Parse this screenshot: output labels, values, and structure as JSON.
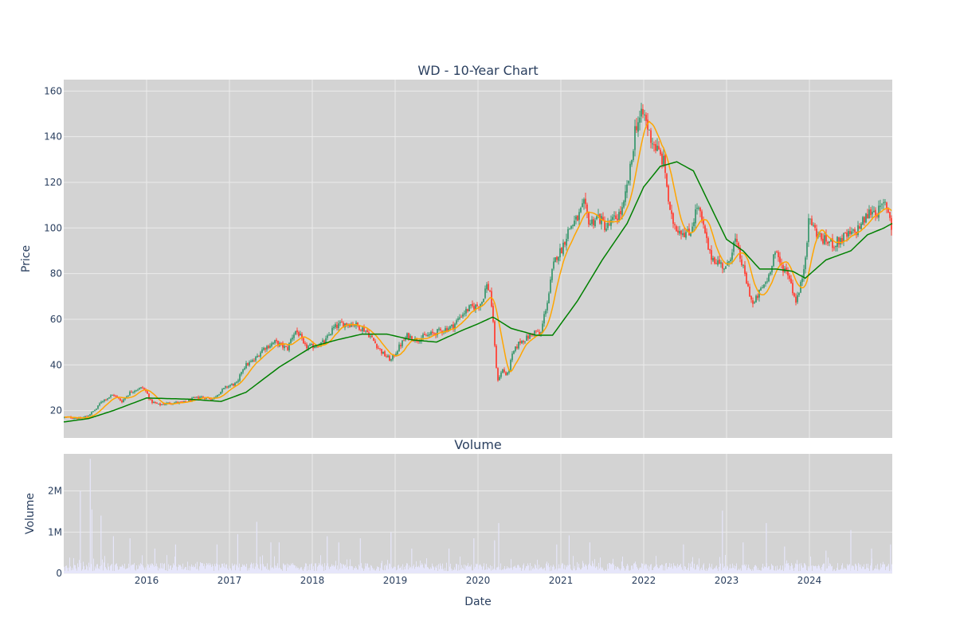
{
  "chart_data": [
    {
      "type": "candlestick",
      "title": "WD - 10-Year Chart",
      "ylabel": "Price",
      "ylim": [
        8,
        165
      ],
      "yticks": [
        20,
        40,
        60,
        80,
        100,
        120,
        140,
        160
      ],
      "xlim": [
        2015.0,
        2025.0
      ],
      "grid": true,
      "background": "#d3d3d3",
      "colors": {
        "up": "#3d9970",
        "down": "#ff4136",
        "ma_short": "#ffa500",
        "ma_long": "#008000"
      },
      "price_anchors": [
        [
          2015.0,
          17
        ],
        [
          2015.1,
          17
        ],
        [
          2015.2,
          16.5
        ],
        [
          2015.3,
          18
        ],
        [
          2015.4,
          21
        ],
        [
          2015.45,
          24
        ],
        [
          2015.55,
          26
        ],
        [
          2015.6,
          27
        ],
        [
          2015.7,
          24
        ],
        [
          2015.8,
          28
        ],
        [
          2015.85,
          29
        ],
        [
          2015.95,
          30
        ],
        [
          2016.0,
          28
        ],
        [
          2016.05,
          24
        ],
        [
          2016.15,
          22.5
        ],
        [
          2016.3,
          23.5
        ],
        [
          2016.45,
          23.5
        ],
        [
          2016.55,
          25
        ],
        [
          2016.65,
          26
        ],
        [
          2016.8,
          25
        ],
        [
          2016.85,
          27
        ],
        [
          2016.95,
          30
        ],
        [
          2017.0,
          31
        ],
        [
          2017.1,
          32
        ],
        [
          2017.15,
          38
        ],
        [
          2017.2,
          40
        ],
        [
          2017.3,
          42
        ],
        [
          2017.4,
          47
        ],
        [
          2017.55,
          50
        ],
        [
          2017.7,
          47
        ],
        [
          2017.75,
          52
        ],
        [
          2017.8,
          55
        ],
        [
          2017.85,
          53
        ],
        [
          2017.9,
          48
        ],
        [
          2018.0,
          48
        ],
        [
          2018.15,
          50
        ],
        [
          2018.25,
          56
        ],
        [
          2018.35,
          58
        ],
        [
          2018.5,
          58
        ],
        [
          2018.65,
          55
        ],
        [
          2018.75,
          50
        ],
        [
          2018.85,
          45
        ],
        [
          2018.95,
          42
        ],
        [
          2019.05,
          48
        ],
        [
          2019.15,
          53
        ],
        [
          2019.25,
          51
        ],
        [
          2019.4,
          53
        ],
        [
          2019.55,
          55
        ],
        [
          2019.7,
          57
        ],
        [
          2019.8,
          62
        ],
        [
          2019.9,
          65
        ],
        [
          2020.0,
          66
        ],
        [
          2020.05,
          68
        ],
        [
          2020.1,
          75
        ],
        [
          2020.15,
          72
        ],
        [
          2020.2,
          50
        ],
        [
          2020.23,
          33
        ],
        [
          2020.3,
          38
        ],
        [
          2020.35,
          35
        ],
        [
          2020.42,
          45
        ],
        [
          2020.5,
          50
        ],
        [
          2020.6,
          52
        ],
        [
          2020.7,
          55
        ],
        [
          2020.75,
          52
        ],
        [
          2020.8,
          62
        ],
        [
          2020.85,
          70
        ],
        [
          2020.9,
          82
        ],
        [
          2020.95,
          88
        ],
        [
          2021.0,
          90
        ],
        [
          2021.1,
          100
        ],
        [
          2021.2,
          104
        ],
        [
          2021.28,
          110
        ],
        [
          2021.35,
          102
        ],
        [
          2021.45,
          105
        ],
        [
          2021.55,
          100
        ],
        [
          2021.65,
          104
        ],
        [
          2021.75,
          108
        ],
        [
          2021.8,
          118
        ],
        [
          2021.85,
          128
        ],
        [
          2021.9,
          145
        ],
        [
          2022.0,
          150
        ],
        [
          2022.08,
          140
        ],
        [
          2022.15,
          135
        ],
        [
          2022.25,
          128
        ],
        [
          2022.32,
          105
        ],
        [
          2022.4,
          100
        ],
        [
          2022.55,
          97
        ],
        [
          2022.65,
          110
        ],
        [
          2022.72,
          100
        ],
        [
          2022.8,
          88
        ],
        [
          2022.9,
          85
        ],
        [
          2023.0,
          82
        ],
        [
          2023.1,
          95
        ],
        [
          2023.18,
          85
        ],
        [
          2023.25,
          75
        ],
        [
          2023.32,
          66
        ],
        [
          2023.4,
          72
        ],
        [
          2023.5,
          78
        ],
        [
          2023.58,
          90
        ],
        [
          2023.65,
          84
        ],
        [
          2023.75,
          80
        ],
        [
          2023.83,
          68
        ],
        [
          2023.88,
          72
        ],
        [
          2023.93,
          82
        ],
        [
          2024.0,
          105
        ],
        [
          2024.05,
          100
        ],
        [
          2024.15,
          95
        ],
        [
          2024.3,
          93
        ],
        [
          2024.42,
          96
        ],
        [
          2024.55,
          98
        ],
        [
          2024.65,
          103
        ],
        [
          2024.75,
          108
        ],
        [
          2024.83,
          107
        ],
        [
          2024.92,
          111
        ],
        [
          2024.98,
          104
        ],
        [
          2025.0,
          97
        ]
      ],
      "ma_long_anchors": [
        [
          2015.0,
          15
        ],
        [
          2015.3,
          16.5
        ],
        [
          2015.6,
          20
        ],
        [
          2016.0,
          25.5
        ],
        [
          2016.5,
          25
        ],
        [
          2016.9,
          24
        ],
        [
          2017.2,
          28
        ],
        [
          2017.6,
          39
        ],
        [
          2018.0,
          48
        ],
        [
          2018.3,
          51
        ],
        [
          2018.6,
          53.5
        ],
        [
          2018.9,
          53.5
        ],
        [
          2019.2,
          51
        ],
        [
          2019.5,
          50
        ],
        [
          2019.8,
          55
        ],
        [
          2020.0,
          58
        ],
        [
          2020.18,
          61
        ],
        [
          2020.4,
          56
        ],
        [
          2020.7,
          53
        ],
        [
          2020.9,
          53
        ],
        [
          2021.2,
          68
        ],
        [
          2021.5,
          86
        ],
        [
          2021.8,
          102
        ],
        [
          2022.0,
          118
        ],
        [
          2022.2,
          127
        ],
        [
          2022.4,
          129
        ],
        [
          2022.6,
          125
        ],
        [
          2022.8,
          110
        ],
        [
          2023.0,
          95
        ],
        [
          2023.2,
          90
        ],
        [
          2023.4,
          82
        ],
        [
          2023.6,
          82
        ],
        [
          2023.8,
          81
        ],
        [
          2023.95,
          78
        ],
        [
          2024.2,
          86
        ],
        [
          2024.5,
          90
        ],
        [
          2024.7,
          97
        ],
        [
          2024.9,
          100
        ],
        [
          2025.0,
          102
        ]
      ]
    },
    {
      "type": "bar",
      "title": "Volume",
      "xlabel": "Date",
      "ylabel": "Volume",
      "ylim": [
        0,
        2900000
      ],
      "yticks": [
        {
          "value": 0,
          "label": "0"
        },
        {
          "value": 1000000,
          "label": "1M"
        },
        {
          "value": 2000000,
          "label": "2M"
        }
      ],
      "xticks": [
        {
          "value": 2016,
          "label": "2016"
        },
        {
          "value": 2017,
          "label": "2017"
        },
        {
          "value": 2018,
          "label": "2018"
        },
        {
          "value": 2019,
          "label": "2019"
        },
        {
          "value": 2020,
          "label": "2020"
        },
        {
          "value": 2021,
          "label": "2021"
        },
        {
          "value": 2022,
          "label": "2022"
        },
        {
          "value": 2023,
          "label": "2023"
        },
        {
          "value": 2024,
          "label": "2024"
        }
      ],
      "xlim": [
        2015.0,
        2025.0
      ],
      "grid": true,
      "background": "#d3d3d3",
      "bar_color": "#e6e6fa",
      "baseline_level": 180000,
      "spikes": [
        [
          2015.2,
          2000000
        ],
        [
          2015.32,
          2780000
        ],
        [
          2015.34,
          1550000
        ],
        [
          2015.45,
          1400000
        ],
        [
          2015.6,
          900000
        ],
        [
          2015.8,
          850000
        ],
        [
          2016.1,
          600000
        ],
        [
          2016.35,
          700000
        ],
        [
          2016.85,
          700000
        ],
        [
          2017.1,
          950000
        ],
        [
          2017.33,
          1250000
        ],
        [
          2017.5,
          750000
        ],
        [
          2017.6,
          750000
        ],
        [
          2018.18,
          900000
        ],
        [
          2018.32,
          750000
        ],
        [
          2018.58,
          850000
        ],
        [
          2018.95,
          1000000
        ],
        [
          2019.2,
          600000
        ],
        [
          2019.65,
          600000
        ],
        [
          2019.95,
          850000
        ],
        [
          2020.25,
          1220000
        ],
        [
          2020.2,
          800000
        ],
        [
          2020.95,
          700000
        ],
        [
          2021.1,
          920000
        ],
        [
          2021.35,
          750000
        ],
        [
          2022.48,
          700000
        ],
        [
          2022.95,
          1520000
        ],
        [
          2023.2,
          750000
        ],
        [
          2023.48,
          1220000
        ],
        [
          2023.7,
          650000
        ],
        [
          2024.2,
          550000
        ],
        [
          2024.5,
          1050000
        ],
        [
          2024.75,
          600000
        ],
        [
          2024.98,
          700000
        ]
      ]
    }
  ]
}
